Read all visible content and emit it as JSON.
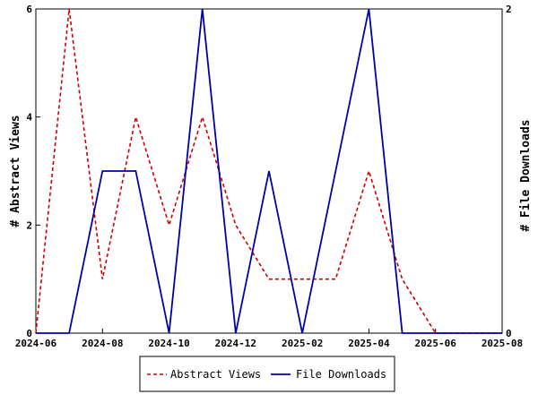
{
  "chart_data": {
    "type": "line",
    "x": [
      "2024-06",
      "2024-07",
      "2024-08",
      "2024-09",
      "2024-10",
      "2024-11",
      "2024-12",
      "2025-01",
      "2025-02",
      "2025-03",
      "2025-04",
      "2025-05",
      "2025-06",
      "2025-07",
      "2025-08"
    ],
    "x_tick_labels": [
      "2024-06",
      "2024-08",
      "2024-10",
      "2024-12",
      "2025-02",
      "2025-04",
      "2025-06",
      "2025-08"
    ],
    "series": [
      {
        "name": "Abstract Views",
        "axis": "left",
        "color": "#cc0000",
        "style": "dashed",
        "values": [
          0,
          6,
          1,
          4,
          2,
          4,
          2,
          1,
          1,
          1,
          3,
          1,
          0,
          0,
          0
        ]
      },
      {
        "name": "File Downloads",
        "axis": "right",
        "color": "#0000aa",
        "style": "solid",
        "values": [
          0,
          0,
          1,
          1,
          0,
          2,
          0,
          1,
          0,
          1,
          2,
          0,
          0,
          0,
          0
        ]
      }
    ],
    "ylabel_left": "# Abstract Views",
    "ylabel_right": "# File Downloads",
    "ylim_left": [
      0,
      6
    ],
    "ylim_right": [
      0,
      2
    ],
    "y_ticks_left": [
      "0",
      "2",
      "4",
      "6"
    ],
    "y_ticks_right": [
      "0",
      "2"
    ],
    "grid": false,
    "legend_position": "bottom-center"
  }
}
